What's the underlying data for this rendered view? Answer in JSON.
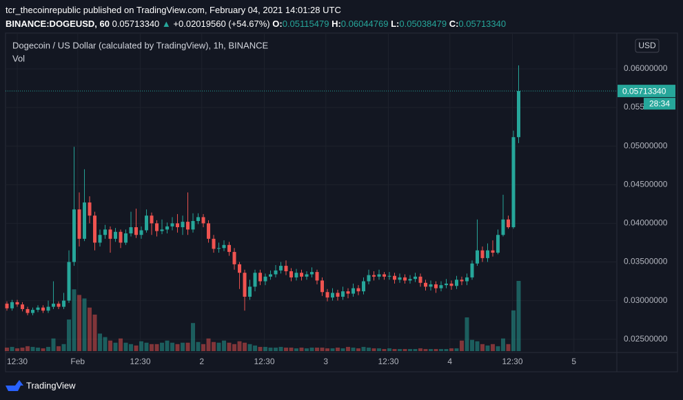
{
  "header": {
    "publisher_line": "tcr_thecoinrepublic published on TradingView.com, February 04, 2021 14:01:28 UTC",
    "symbol": "BINANCE:DOGEUSD, 60",
    "last": "0.05713340",
    "arrow": "▲",
    "change": "+0.02019560 (+54.67%)",
    "ohlc": [
      {
        "label": "O:",
        "value": "0.05115479"
      },
      {
        "label": "H:",
        "value": "0.06044769"
      },
      {
        "label": "L:",
        "value": "0.05038479"
      },
      {
        "label": "C:",
        "value": "0.05713340"
      }
    ],
    "currency": "USD",
    "countdown": "28:34",
    "brand": "TradingView"
  },
  "chart_data": {
    "type": "candlestick",
    "title": "Dogecoin / US Dollar (calculated by TradingView), 1h, BINANCE",
    "volume_label": "Vol",
    "up_color": "#26a69a",
    "down_color": "#ef5350",
    "grid": true,
    "xlim": [
      -0.27,
      118
    ],
    "ylim": [
      0.02346,
      0.06463
    ],
    "xticks": [
      {
        "value": 2,
        "label": "12:30"
      },
      {
        "value": 13.7,
        "label": "Feb"
      },
      {
        "value": 25.8,
        "label": "12:30"
      },
      {
        "value": 37.7,
        "label": "2"
      },
      {
        "value": 49.8,
        "label": "12:30"
      },
      {
        "value": 61.7,
        "label": "3"
      },
      {
        "value": 73.8,
        "label": "12:30"
      },
      {
        "value": 85.7,
        "label": "4"
      },
      {
        "value": 97.8,
        "label": "12:30"
      },
      {
        "value": 109.7,
        "label": "5"
      }
    ],
    "yticks": [
      {
        "value": 0.025,
        "label": "0.02500000"
      },
      {
        "value": 0.03,
        "label": "0.03000000"
      },
      {
        "value": 0.035,
        "label": "0.03500000"
      },
      {
        "value": 0.04,
        "label": "0.04000000"
      },
      {
        "value": 0.045,
        "label": "0.04500000"
      },
      {
        "value": 0.05,
        "label": "0.05000000"
      },
      {
        "value": 0.055,
        "label": "0.05500000"
      },
      {
        "value": 0.06,
        "label": "0.06000000"
      }
    ],
    "candles": {
      "open": [
        0.0296,
        0.029,
        0.0298,
        0.0295,
        0.0289,
        0.0284,
        0.0288,
        0.0291,
        0.0287,
        0.0292,
        0.0296,
        0.0292,
        0.03,
        0.035,
        0.0418,
        0.038,
        0.0427,
        0.041,
        0.0375,
        0.0385,
        0.0392,
        0.038,
        0.0389,
        0.0375,
        0.0387,
        0.0395,
        0.0385,
        0.0391,
        0.041,
        0.04,
        0.039,
        0.0392,
        0.0396,
        0.04,
        0.0395,
        0.0402,
        0.0392,
        0.0403,
        0.0408,
        0.04,
        0.038,
        0.0367,
        0.0368,
        0.0372,
        0.0363,
        0.0347,
        0.0336,
        0.0305,
        0.0318,
        0.0336,
        0.0325,
        0.0331,
        0.0334,
        0.0339,
        0.0345,
        0.0338,
        0.033,
        0.0336,
        0.0331,
        0.0334,
        0.0337,
        0.0326,
        0.0311,
        0.0304,
        0.031,
        0.0305,
        0.0312,
        0.0309,
        0.0316,
        0.0312,
        0.0325,
        0.0333,
        0.0331,
        0.0334,
        0.0331,
        0.0332,
        0.0327,
        0.033,
        0.0326,
        0.0328,
        0.0331,
        0.0323,
        0.0318,
        0.0321,
        0.0316,
        0.032,
        0.0322,
        0.0319,
        0.0327,
        0.0325,
        0.033,
        0.0348,
        0.0365,
        0.0355,
        0.0365,
        0.0362,
        0.0385,
        0.0405,
        0.0395,
        0.05115479
      ],
      "high": [
        0.0299,
        0.0301,
        0.0301,
        0.0298,
        0.0292,
        0.0291,
        0.0294,
        0.0294,
        0.03,
        0.0325,
        0.0299,
        0.031,
        0.0365,
        0.0499,
        0.044,
        0.047,
        0.0435,
        0.0415,
        0.0392,
        0.0398,
        0.0396,
        0.0394,
        0.0392,
        0.0392,
        0.0415,
        0.0419,
        0.0396,
        0.0418,
        0.0414,
        0.0404,
        0.0405,
        0.0401,
        0.0408,
        0.0412,
        0.041,
        0.044,
        0.0413,
        0.0413,
        0.0412,
        0.0404,
        0.0385,
        0.0375,
        0.0378,
        0.0376,
        0.0368,
        0.035,
        0.034,
        0.0327,
        0.034,
        0.034,
        0.0335,
        0.0339,
        0.0346,
        0.035,
        0.0352,
        0.0342,
        0.0341,
        0.034,
        0.0338,
        0.0343,
        0.034,
        0.033,
        0.0315,
        0.0316,
        0.0314,
        0.0318,
        0.0316,
        0.0322,
        0.032,
        0.033,
        0.034,
        0.0338,
        0.034,
        0.0337,
        0.0337,
        0.0336,
        0.0335,
        0.0334,
        0.0333,
        0.0336,
        0.0335,
        0.0327,
        0.0326,
        0.0325,
        0.0325,
        0.0328,
        0.0326,
        0.0332,
        0.0331,
        0.0335,
        0.0352,
        0.0405,
        0.037,
        0.0374,
        0.0378,
        0.0392,
        0.0437,
        0.041,
        0.052,
        0.06044769
      ],
      "low": [
        0.0287,
        0.0287,
        0.0292,
        0.0286,
        0.0281,
        0.0281,
        0.0285,
        0.0284,
        0.0284,
        0.0289,
        0.0289,
        0.0289,
        0.0297,
        0.0345,
        0.037,
        0.0377,
        0.04,
        0.0365,
        0.037,
        0.038,
        0.0362,
        0.0376,
        0.0368,
        0.0372,
        0.0383,
        0.0381,
        0.038,
        0.0388,
        0.0385,
        0.0383,
        0.0386,
        0.0387,
        0.0391,
        0.0388,
        0.0385,
        0.0385,
        0.0388,
        0.0399,
        0.0395,
        0.0375,
        0.0362,
        0.0362,
        0.0364,
        0.0358,
        0.034,
        0.0315,
        0.0287,
        0.0301,
        0.0312,
        0.032,
        0.032,
        0.0327,
        0.033,
        0.0335,
        0.0333,
        0.0325,
        0.0326,
        0.0326,
        0.0327,
        0.033,
        0.0321,
        0.0306,
        0.0299,
        0.03,
        0.03,
        0.0301,
        0.0303,
        0.0305,
        0.0307,
        0.0308,
        0.0321,
        0.0326,
        0.0327,
        0.0327,
        0.0327,
        0.0322,
        0.0323,
        0.0322,
        0.0322,
        0.0324,
        0.0318,
        0.0313,
        0.0313,
        0.031,
        0.0312,
        0.0316,
        0.0314,
        0.0315,
        0.032,
        0.032,
        0.0327,
        0.0345,
        0.035,
        0.035,
        0.0357,
        0.036,
        0.0383,
        0.0393,
        0.0393,
        0.05038479
      ],
      "close": [
        0.029,
        0.0298,
        0.0295,
        0.0289,
        0.0284,
        0.0288,
        0.0291,
        0.0287,
        0.0292,
        0.0296,
        0.0292,
        0.03,
        0.035,
        0.0418,
        0.038,
        0.0427,
        0.041,
        0.0375,
        0.0385,
        0.0392,
        0.038,
        0.0389,
        0.0375,
        0.0387,
        0.0395,
        0.0385,
        0.0391,
        0.041,
        0.04,
        0.039,
        0.0392,
        0.0396,
        0.04,
        0.0395,
        0.0402,
        0.0392,
        0.0403,
        0.0408,
        0.04,
        0.038,
        0.0367,
        0.0368,
        0.0372,
        0.0363,
        0.0347,
        0.0336,
        0.0305,
        0.0318,
        0.0336,
        0.0325,
        0.0331,
        0.0334,
        0.0339,
        0.0345,
        0.0338,
        0.033,
        0.0336,
        0.0331,
        0.0334,
        0.0337,
        0.0326,
        0.0311,
        0.0304,
        0.031,
        0.0305,
        0.0312,
        0.0309,
        0.0316,
        0.0312,
        0.0325,
        0.0333,
        0.0331,
        0.0334,
        0.0331,
        0.0332,
        0.0327,
        0.033,
        0.0326,
        0.0328,
        0.0331,
        0.0323,
        0.0318,
        0.0321,
        0.0316,
        0.032,
        0.0322,
        0.0319,
        0.0327,
        0.0325,
        0.033,
        0.0348,
        0.0365,
        0.0355,
        0.0365,
        0.0362,
        0.0385,
        0.0405,
        0.0395,
        0.05115479,
        0.0571334
      ],
      "volume": [
        5,
        6,
        4,
        5,
        7,
        6,
        5,
        4,
        6,
        18,
        7,
        10,
        45,
        88,
        80,
        75,
        62,
        52,
        25,
        20,
        15,
        12,
        18,
        12,
        10,
        8,
        14,
        12,
        10,
        10,
        12,
        15,
        12,
        10,
        12,
        12,
        40,
        13,
        10,
        18,
        13,
        12,
        15,
        12,
        10,
        14,
        12,
        10,
        8,
        6,
        6,
        5,
        5,
        6,
        5,
        5,
        4,
        5,
        4,
        5,
        5,
        5,
        4,
        4,
        5,
        4,
        6,
        5,
        4,
        6,
        5,
        4,
        4,
        3,
        4,
        3,
        3,
        3,
        3,
        3,
        4,
        3,
        3,
        3,
        3,
        3,
        4,
        4,
        15,
        48,
        16,
        14,
        10,
        8,
        10,
        7,
        18,
        10,
        58,
        100
      ]
    }
  }
}
